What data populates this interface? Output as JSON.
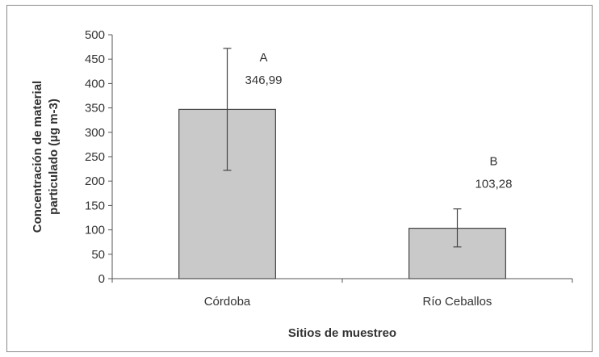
{
  "chart_data": {
    "type": "bar",
    "categories": [
      "Córdoba",
      "Río Ceballos"
    ],
    "values": [
      346.99,
      103.28
    ],
    "error_bars": [
      {
        "low": 222,
        "high": 472
      },
      {
        "low": 65,
        "high": 143
      }
    ],
    "group_letters": [
      "A",
      "B"
    ],
    "data_labels": [
      "346,99",
      "103,28"
    ],
    "xlabel": "Sitios de muestreo",
    "ylabel_lines": [
      "Concentración de material",
      "particulado (µg m-3)"
    ],
    "ylim": [
      0,
      500
    ],
    "yticks": [
      0,
      50,
      100,
      150,
      200,
      250,
      300,
      350,
      400,
      450,
      500
    ],
    "grid": false,
    "bar_color": "#c9c9c9",
    "bar_edge_color": "#444444"
  }
}
